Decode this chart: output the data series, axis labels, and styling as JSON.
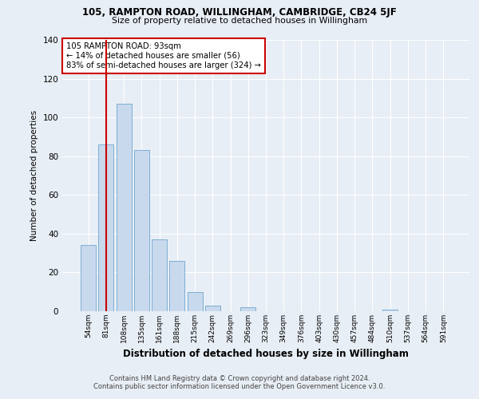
{
  "title1": "105, RAMPTON ROAD, WILLINGHAM, CAMBRIDGE, CB24 5JF",
  "title2": "Size of property relative to detached houses in Willingham",
  "xlabel": "Distribution of detached houses by size in Willingham",
  "ylabel": "Number of detached properties",
  "bar_labels": [
    "54sqm",
    "81sqm",
    "108sqm",
    "135sqm",
    "161sqm",
    "188sqm",
    "215sqm",
    "242sqm",
    "269sqm",
    "296sqm",
    "323sqm",
    "349sqm",
    "376sqm",
    "403sqm",
    "430sqm",
    "457sqm",
    "484sqm",
    "510sqm",
    "537sqm",
    "564sqm",
    "591sqm"
  ],
  "bar_values": [
    34,
    86,
    107,
    83,
    37,
    26,
    10,
    3,
    0,
    2,
    0,
    0,
    0,
    0,
    0,
    0,
    0,
    1,
    0,
    0,
    0
  ],
  "bar_color": "#c9d9ed",
  "bar_edge_color": "#7bafd4",
  "vline_x": 1.0,
  "vline_color": "#cc0000",
  "annotation_text": "105 RAMPTON ROAD: 93sqm\n← 14% of detached houses are smaller (56)\n83% of semi-detached houses are larger (324) →",
  "annotation_box_edge": "#cc0000",
  "annotation_box_face": "#ffffff",
  "ylim": [
    0,
    140
  ],
  "yticks": [
    0,
    20,
    40,
    60,
    80,
    100,
    120,
    140
  ],
  "background_color": "#e8eef5",
  "grid_color": "#ffffff",
  "footer1": "Contains HM Land Registry data © Crown copyright and database right 2024.",
  "footer2": "Contains public sector information licensed under the Open Government Licence v3.0."
}
